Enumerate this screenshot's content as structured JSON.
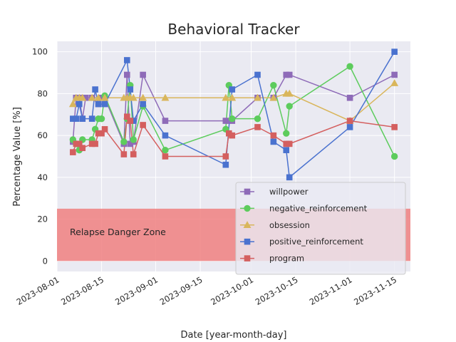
{
  "chart_data": {
    "type": "line",
    "title": "Behavioral Tracker",
    "xlabel": "Date [year-month-day]",
    "ylabel": "Percentage Value [%]",
    "x_ticks": [
      "2023-08-01",
      "2023-08-15",
      "2023-09-01",
      "2023-09-15",
      "2023-10-01",
      "2023-10-15",
      "2023-11-01",
      "2023-11-15"
    ],
    "y_ticks": [
      0,
      20,
      40,
      60,
      80,
      100
    ],
    "xlim": [
      "2023-08-01",
      "2023-11-20"
    ],
    "ylim": [
      -5,
      105
    ],
    "grid": true,
    "legend_position": "lower-right",
    "span": {
      "y0": 0,
      "y1": 25,
      "color": "#f08080",
      "label": "Relapse Danger Zone"
    },
    "series": [
      {
        "name": "willpower",
        "color": "#8e6bb8",
        "marker": "square",
        "points": [
          [
            "2023-08-06",
            57
          ],
          [
            "2023-08-07",
            78
          ],
          [
            "2023-08-08",
            78
          ],
          [
            "2023-08-09",
            68
          ],
          [
            "2023-08-10",
            78
          ],
          [
            "2023-08-12",
            78
          ],
          [
            "2023-08-14",
            75
          ],
          [
            "2023-08-15",
            78
          ],
          [
            "2023-08-16",
            78
          ],
          [
            "2023-08-22",
            56
          ],
          [
            "2023-08-23",
            89
          ],
          [
            "2023-08-24",
            56
          ],
          [
            "2023-08-25",
            57
          ],
          [
            "2023-08-28",
            89
          ],
          [
            "2023-09-04",
            67
          ],
          [
            "2023-09-23",
            67
          ],
          [
            "2023-09-25",
            67
          ],
          [
            "2023-10-03",
            78
          ],
          [
            "2023-10-08",
            78
          ],
          [
            "2023-10-12",
            89
          ],
          [
            "2023-10-13",
            89
          ],
          [
            "2023-11-01",
            78
          ],
          [
            "2023-11-15",
            89
          ]
        ]
      },
      {
        "name": "negative_reinforcement",
        "color": "#5dcc5d",
        "marker": "circle",
        "points": [
          [
            "2023-08-06",
            58
          ],
          [
            "2023-08-07",
            56
          ],
          [
            "2023-08-08",
            53
          ],
          [
            "2023-08-09",
            58
          ],
          [
            "2023-08-12",
            58
          ],
          [
            "2023-08-13",
            63
          ],
          [
            "2023-08-14",
            68
          ],
          [
            "2023-08-15",
            68
          ],
          [
            "2023-08-16",
            79
          ],
          [
            "2023-08-22",
            57
          ],
          [
            "2023-08-23",
            68
          ],
          [
            "2023-08-24",
            84
          ],
          [
            "2023-08-25",
            58
          ],
          [
            "2023-08-28",
            74
          ],
          [
            "2023-09-04",
            53
          ],
          [
            "2023-09-23",
            63
          ],
          [
            "2023-09-24",
            84
          ],
          [
            "2023-09-25",
            68
          ],
          [
            "2023-10-03",
            68
          ],
          [
            "2023-10-08",
            84
          ],
          [
            "2023-10-12",
            61
          ],
          [
            "2023-10-13",
            74
          ],
          [
            "2023-11-01",
            93
          ],
          [
            "2023-11-15",
            50
          ]
        ]
      },
      {
        "name": "obsession",
        "color": "#d9b65c",
        "marker": "triangle",
        "points": [
          [
            "2023-08-06",
            75
          ],
          [
            "2023-08-07",
            78
          ],
          [
            "2023-08-08",
            78
          ],
          [
            "2023-08-09",
            78
          ],
          [
            "2023-08-12",
            78
          ],
          [
            "2023-08-14",
            78
          ],
          [
            "2023-08-16",
            78
          ],
          [
            "2023-08-22",
            78
          ],
          [
            "2023-08-23",
            78
          ],
          [
            "2023-08-24",
            78
          ],
          [
            "2023-08-25",
            78
          ],
          [
            "2023-08-28",
            78
          ],
          [
            "2023-09-04",
            78
          ],
          [
            "2023-09-23",
            78
          ],
          [
            "2023-09-25",
            78
          ],
          [
            "2023-10-03",
            78
          ],
          [
            "2023-10-08",
            78
          ],
          [
            "2023-10-12",
            80
          ],
          [
            "2023-10-13",
            80
          ],
          [
            "2023-11-01",
            67
          ],
          [
            "2023-11-15",
            85
          ]
        ]
      },
      {
        "name": "positive_reinforcement",
        "color": "#4a72cf",
        "marker": "square",
        "points": [
          [
            "2023-08-06",
            68
          ],
          [
            "2023-08-07",
            68
          ],
          [
            "2023-08-08",
            75
          ],
          [
            "2023-08-09",
            68
          ],
          [
            "2023-08-12",
            68
          ],
          [
            "2023-08-13",
            82
          ],
          [
            "2023-08-14",
            75
          ],
          [
            "2023-08-16",
            75
          ],
          [
            "2023-08-23",
            96
          ],
          [
            "2023-08-24",
            82
          ],
          [
            "2023-08-25",
            67
          ],
          [
            "2023-08-28",
            75
          ],
          [
            "2023-09-04",
            60
          ],
          [
            "2023-09-23",
            46
          ],
          [
            "2023-09-25",
            82
          ],
          [
            "2023-10-03",
            89
          ],
          [
            "2023-10-08",
            57
          ],
          [
            "2023-10-12",
            53
          ],
          [
            "2023-10-13",
            40
          ],
          [
            "2023-11-01",
            64
          ],
          [
            "2023-11-15",
            100
          ]
        ]
      },
      {
        "name": "program",
        "color": "#d45f5f",
        "marker": "square",
        "points": [
          [
            "2023-08-06",
            52
          ],
          [
            "2023-08-07",
            56
          ],
          [
            "2023-08-08",
            56
          ],
          [
            "2023-08-09",
            54
          ],
          [
            "2023-08-12",
            56
          ],
          [
            "2023-08-13",
            56
          ],
          [
            "2023-08-14",
            61
          ],
          [
            "2023-08-15",
            61
          ],
          [
            "2023-08-16",
            63
          ],
          [
            "2023-08-22",
            51
          ],
          [
            "2023-08-23",
            69
          ],
          [
            "2023-08-24",
            67
          ],
          [
            "2023-08-25",
            51
          ],
          [
            "2023-08-28",
            65
          ],
          [
            "2023-09-04",
            50
          ],
          [
            "2023-09-23",
            50
          ],
          [
            "2023-09-24",
            61
          ],
          [
            "2023-09-25",
            60
          ],
          [
            "2023-10-03",
            64
          ],
          [
            "2023-10-08",
            60
          ],
          [
            "2023-10-12",
            56
          ],
          [
            "2023-10-13",
            56
          ],
          [
            "2023-11-01",
            67
          ],
          [
            "2023-11-15",
            64
          ]
        ]
      }
    ]
  }
}
